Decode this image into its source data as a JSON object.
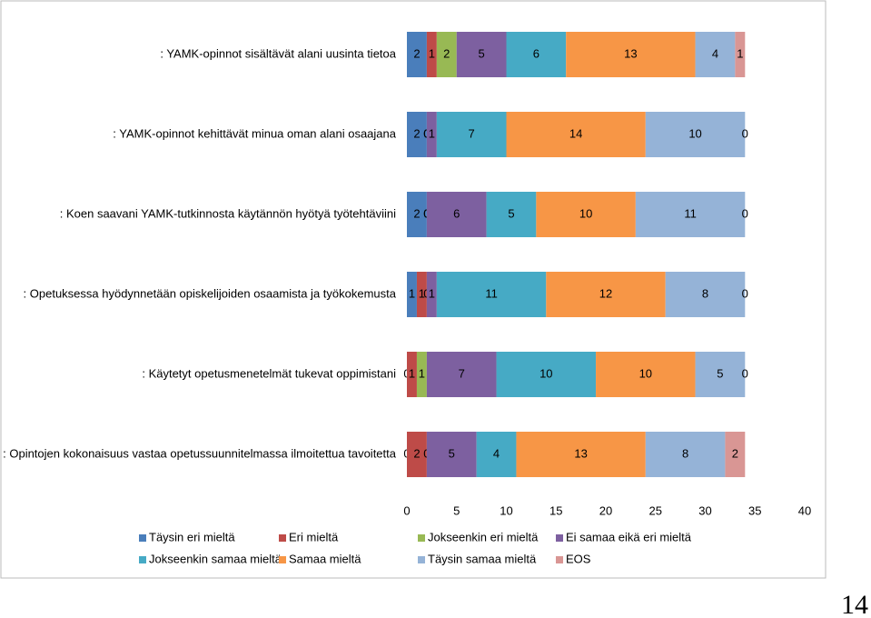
{
  "chart_data": {
    "type": "stacked-bar-horizontal",
    "categories": [
      ": YAMK-opinnot sisältävät alani uusinta  tietoa",
      ": YAMK-opinnot kehittävät minua oman alani osaajana",
      ": Koen saavani YAMK-tutkinnosta käytännön hyötyä työtehtäviini",
      ": Opetuksessa hyödynnetään opiskelijoiden osaamista ja työkokemusta",
      ": Käytetyt opetusmenetelmät tukevat oppimistani",
      ": Opintojen kokonaisuus vastaa opetussuunnitelmassa ilmoitettua tavoitetta"
    ],
    "series": [
      {
        "name": "Täysin eri mieltä",
        "color": "#4a7ebb",
        "values": [
          2,
          2,
          2,
          1,
          0,
          0
        ]
      },
      {
        "name": "Eri mieltä",
        "color": "#be4b48",
        "values": [
          1,
          0,
          0,
          1,
          1,
          2
        ]
      },
      {
        "name": "Jokseenkin eri mieltä",
        "color": "#98b954",
        "values": [
          2,
          0,
          0,
          0,
          1,
          0
        ]
      },
      {
        "name": "Ei samaa eikä eri mieltä",
        "color": "#7d60a0",
        "values": [
          5,
          1,
          6,
          1,
          7,
          5
        ]
      },
      {
        "name": "Jokseenkin samaa mieltä",
        "color": "#46aac5",
        "values": [
          6,
          7,
          5,
          11,
          10,
          4
        ]
      },
      {
        "name": "Samaa mieltä",
        "color": "#f79646",
        "values": [
          13,
          14,
          10,
          12,
          10,
          13
        ]
      },
      {
        "name": "Täysin samaa mieltä",
        "color": "#95b3d7",
        "values": [
          4,
          10,
          11,
          8,
          5,
          8
        ]
      },
      {
        "name": "EOS",
        "color": "#d99694",
        "values": [
          1,
          0,
          0,
          0,
          0,
          2
        ]
      }
    ],
    "xlim": [
      0,
      40
    ],
    "xticks": [
      0,
      5,
      10,
      15,
      20,
      25,
      30,
      35,
      40
    ],
    "grid": false,
    "legend": "bottom"
  },
  "page_number": "14"
}
